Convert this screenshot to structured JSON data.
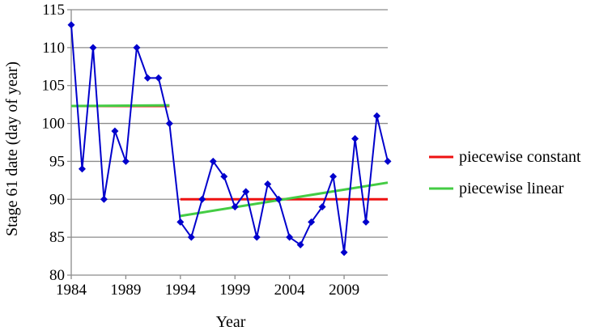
{
  "chart_data": {
    "type": "line",
    "xlabel": "Year",
    "ylabel": "Stage 61 date (day of year)",
    "xlim": [
      1984,
      2013
    ],
    "ylim": [
      80,
      115
    ],
    "x_ticks": [
      1984,
      1989,
      1994,
      1999,
      2004,
      2009
    ],
    "y_ticks": [
      80,
      85,
      90,
      95,
      100,
      105,
      110,
      115
    ],
    "grid": "horizontal",
    "legend_position": "right",
    "colors": {
      "observed": "#0000cc",
      "piecewise_constant": "#ee1111",
      "piecewise_linear": "#44cc44"
    },
    "observed": {
      "x": [
        1984,
        1985,
        1986,
        1987,
        1988,
        1989,
        1990,
        1991,
        1992,
        1993,
        1994,
        1995,
        1996,
        1997,
        1998,
        1999,
        2000,
        2001,
        2002,
        2003,
        2004,
        2005,
        2006,
        2007,
        2008,
        2009,
        2010,
        2011,
        2012,
        2013
      ],
      "y": [
        113,
        94,
        110,
        90,
        99,
        95,
        110,
        106,
        106,
        100,
        87,
        85,
        90,
        95,
        93,
        89,
        91,
        85,
        92,
        90,
        85,
        84,
        87,
        89,
        93,
        83,
        98,
        87,
        101,
        95
      ]
    },
    "series": [
      {
        "name": "piecewise constant",
        "segments": [
          {
            "x": [
              1984,
              1993
            ],
            "y": [
              102.3,
              102.3
            ]
          },
          {
            "x": [
              1994,
              2013
            ],
            "y": [
              90,
              90
            ]
          }
        ]
      },
      {
        "name": "piecewise linear",
        "segments": [
          {
            "x": [
              1984,
              1993
            ],
            "y": [
              102.3,
              102.4
            ]
          },
          {
            "x": [
              1994,
              2013
            ],
            "y": [
              87.8,
              92.2
            ]
          }
        ]
      }
    ]
  }
}
